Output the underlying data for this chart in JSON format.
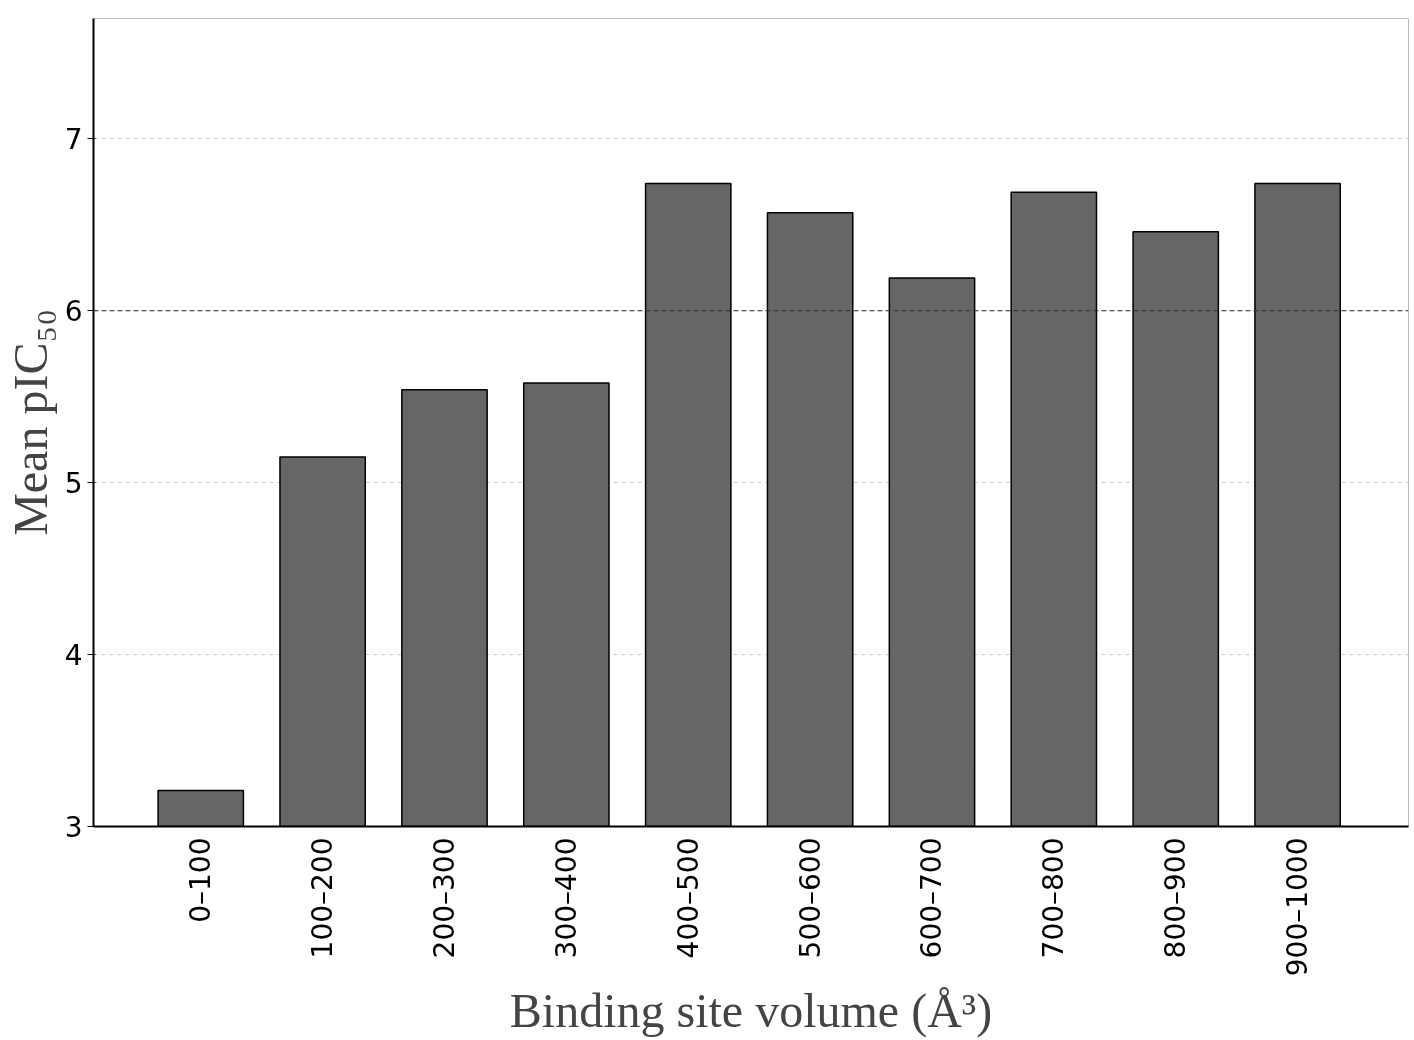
{
  "chart_data": {
    "type": "bar",
    "xlabel": "Binding site volume (Å³)",
    "ylabel": "Mean pIC₅₀",
    "categories": [
      "0–100",
      "100–200",
      "200–300",
      "300–400",
      "400–500",
      "500–600",
      "600–700",
      "700–800",
      "800–900",
      "900–1000"
    ],
    "values": [
      3.21,
      5.15,
      5.54,
      5.58,
      6.74,
      6.57,
      6.19,
      6.69,
      6.46,
      6.74
    ],
    "color": "#666666",
    "ylim": [
      3,
      7.7
    ],
    "yticks": [
      3,
      4,
      5,
      6,
      7
    ],
    "grid": "y",
    "ref_lines": [
      {
        "axis": "y",
        "value": 6,
        "label": null,
        "color": "#333333",
        "line_style": "dashed"
      }
    ]
  }
}
